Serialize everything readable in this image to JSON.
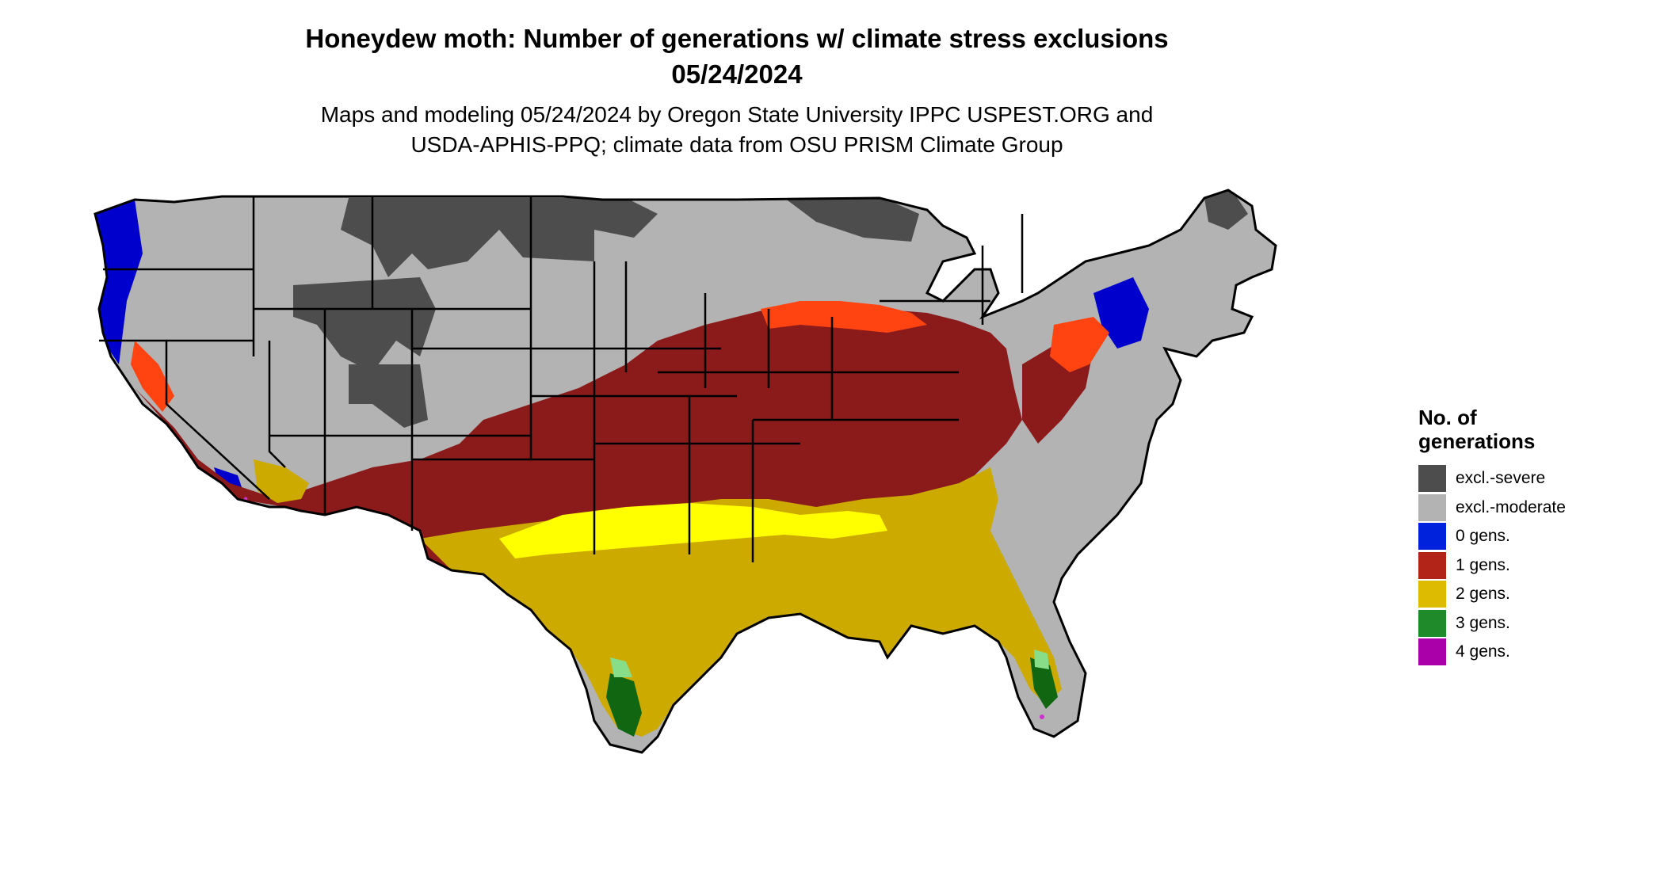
{
  "title": {
    "line1": "Honeydew moth: Number of generations w/ climate stress exclusions",
    "line2": "05/24/2024"
  },
  "subtitle": {
    "line1": "Maps and modeling 05/24/2024 by Oregon State University IPPC USPEST.ORG and",
    "line2": "USDA-APHIS-PPQ; climate data from OSU PRISM Climate Group"
  },
  "legend": {
    "title_line1": "No. of",
    "title_line2": "generations",
    "items": [
      {
        "label": "excl.-severe",
        "color": "#4d4d4d"
      },
      {
        "label": "excl.-moderate",
        "color": "#b3b3b3"
      },
      {
        "label": "0 gens.",
        "color": "#0022dd"
      },
      {
        "label": "1 gens.",
        "color": "#b22418"
      },
      {
        "label": "2 gens.",
        "color": "#ddbb00"
      },
      {
        "label": "3 gens.",
        "color": "#1f8a2a"
      },
      {
        "label": "4 gens.",
        "color": "#aa00aa"
      }
    ]
  },
  "map": {
    "colors": {
      "severe": "#4d4d4d",
      "moderate": "#b3b3b3",
      "zero": "#0000cc",
      "one": "#8b1a1a",
      "one_transition": "#ff4411",
      "two": "#ccaa00",
      "two_light": "#ffff00",
      "three": "#116611",
      "three_light": "#88dd88",
      "four": "#cc33cc",
      "border": "#000000"
    }
  }
}
